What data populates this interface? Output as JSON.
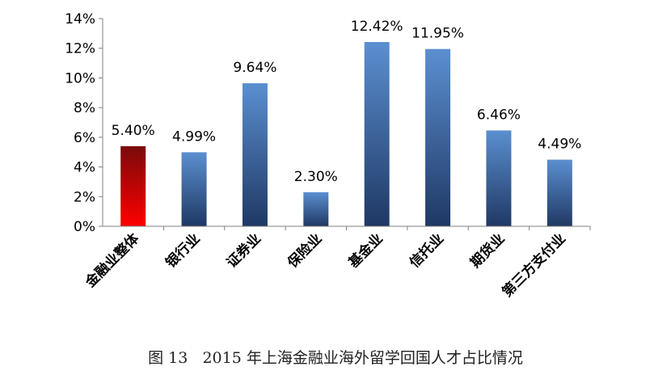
{
  "figure": {
    "caption": "图 13   2015 年上海金融业海外留学回国人才占比情况"
  },
  "chart_data": {
    "type": "bar",
    "categories": [
      "金融业整体",
      "银行业",
      "证券业",
      "保险业",
      "基金业",
      "信托业",
      "期货业",
      "第三方支付业"
    ],
    "values": [
      5.4,
      4.99,
      9.64,
      2.3,
      12.42,
      11.95,
      6.46,
      4.49
    ],
    "data_labels": [
      "5.40%",
      "4.99%",
      "9.64%",
      "2.30%",
      "12.42%",
      "11.95%",
      "6.46%",
      "4.49%"
    ],
    "y_ticks": [
      0,
      2,
      4,
      6,
      8,
      10,
      12,
      14
    ],
    "y_tick_labels": [
      "0%",
      "2%",
      "4%",
      "6%",
      "8%",
      "10%",
      "12%",
      "14%"
    ],
    "ylim": [
      0,
      14
    ],
    "grid": false,
    "legend": "none",
    "highlight_index": 0,
    "colors": {
      "highlight_top": "#7a0a0a",
      "highlight_bottom": "#ff0000",
      "bar_top": "#5b8fd0",
      "bar_bottom": "#1f3864",
      "axis": "#808080"
    }
  }
}
